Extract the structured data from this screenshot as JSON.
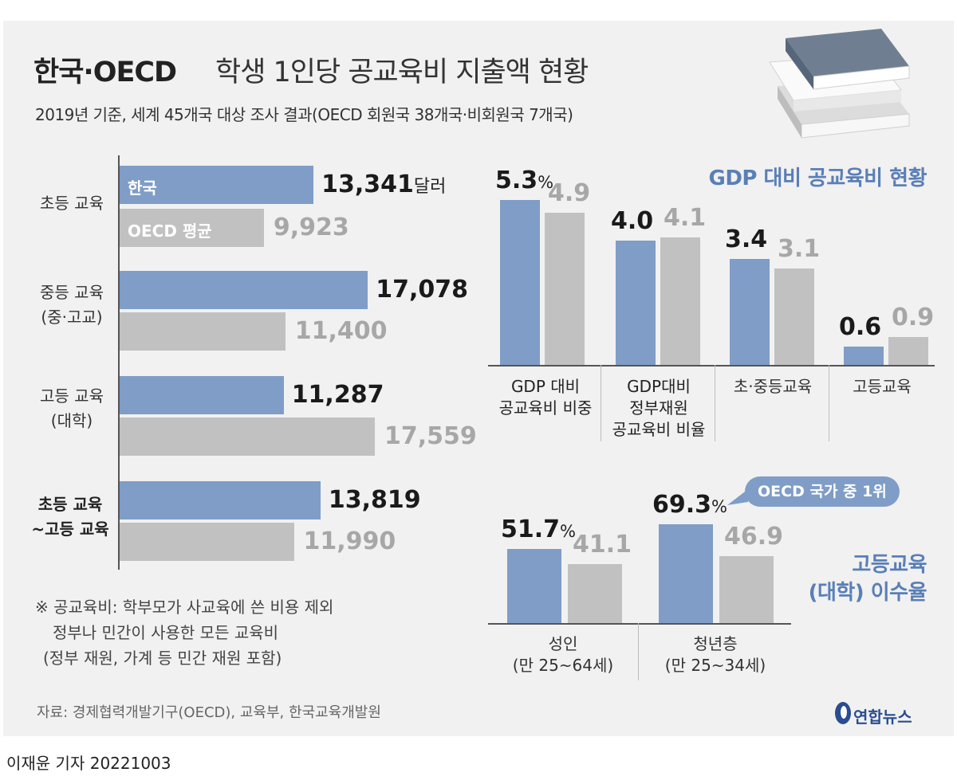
{
  "title": {
    "bold": "한국·OECD",
    "rest": "학생 1인당 공교육비 지출액 현황"
  },
  "subtitle": "2019년 기준, 세계 45개국 대상 조사 결과(OECD 회원국 38개국·비회원국 7개국)",
  "colors": {
    "korea": "#7f9dc6",
    "oecd": "#c1c1c1",
    "accent": "#5a7fb6"
  },
  "icons": {
    "books": "books-illustration",
    "logo": "yonhap-logo"
  },
  "spending_chart": {
    "legend": {
      "korea": "한국",
      "oecd": "OECD 평균"
    },
    "unit": "달러",
    "groups": [
      {
        "label_lines": [
          "초등 교육"
        ],
        "korea": 13341,
        "korea_text": "13,341",
        "oecd": 9923,
        "oecd_text": "9,923"
      },
      {
        "label_lines": [
          "중등 교육",
          "(중·고교)"
        ],
        "korea": 17078,
        "korea_text": "17,078",
        "oecd": 11400,
        "oecd_text": "11,400"
      },
      {
        "label_lines": [
          "고등 교육",
          "(대학)"
        ],
        "korea": 11287,
        "korea_text": "11,287",
        "oecd": 17559,
        "oecd_text": "17,559"
      },
      {
        "label_lines": [
          "초등 교육",
          "~고등 교육"
        ],
        "korea": 13819,
        "korea_text": "13,819",
        "oecd": 11990,
        "oecd_text": "11,990"
      }
    ]
  },
  "gdp_chart": {
    "title": "GDP 대비 공교육비 현황",
    "unit": "%",
    "groups": [
      {
        "label_lines": [
          "GDP 대비",
          "공교육비 비중"
        ],
        "korea": 5.3,
        "korea_text": "5.3",
        "oecd": 4.9,
        "oecd_text": "4.9"
      },
      {
        "label_lines": [
          "GDP대비",
          "정부재원",
          "공교육비 비율"
        ],
        "korea": 4.0,
        "korea_text": "4.0",
        "oecd": 4.1,
        "oecd_text": "4.1"
      },
      {
        "label_lines": [
          "초·중등교육"
        ],
        "korea": 3.4,
        "korea_text": "3.4",
        "oecd": 3.1,
        "oecd_text": "3.1"
      },
      {
        "label_lines": [
          "고등교육"
        ],
        "korea": 0.6,
        "korea_text": "0.6",
        "oecd": 0.9,
        "oecd_text": "0.9"
      }
    ]
  },
  "completion_chart": {
    "title_lines": [
      "고등교육",
      "(대학) 이수율"
    ],
    "unit": "%",
    "callout": "OECD 국가 중 1위",
    "groups": [
      {
        "label_lines": [
          "성인",
          "(만 25~64세)"
        ],
        "korea": 51.7,
        "korea_text": "51.7",
        "oecd": 41.1,
        "oecd_text": "41.1"
      },
      {
        "label_lines": [
          "청년층",
          "(만 25~34세)"
        ],
        "korea": 69.3,
        "korea_text": "69.3",
        "oecd": 46.9,
        "oecd_text": "46.9"
      }
    ]
  },
  "chart_data": [
    {
      "type": "bar",
      "orientation": "horizontal",
      "title": "한국·OECD 학생 1인당 공교육비 지출액 현황",
      "categories": [
        "초등 교육",
        "중등 교육 (중·고교)",
        "고등 교육 (대학)",
        "초등 교육 ~고등 교육"
      ],
      "series": [
        {
          "name": "한국",
          "values": [
            13341,
            17078,
            11287,
            13819
          ]
        },
        {
          "name": "OECD 평균",
          "values": [
            9923,
            11400,
            17559,
            11990
          ]
        }
      ],
      "unit": "달러",
      "xlim": [
        0,
        17559
      ]
    },
    {
      "type": "bar",
      "title": "GDP 대비 공교육비 현황",
      "categories": [
        "GDP 대비 공교육비 비중",
        "GDP대비 정부재원 공교육비 비율",
        "초·중등교육",
        "고등교육"
      ],
      "series": [
        {
          "name": "한국",
          "values": [
            5.3,
            4.0,
            3.4,
            0.6
          ]
        },
        {
          "name": "OECD 평균",
          "values": [
            4.9,
            4.1,
            3.1,
            0.9
          ]
        }
      ],
      "unit": "%",
      "ylim": [
        0,
        5.3
      ]
    },
    {
      "type": "bar",
      "title": "고등교육 (대학) 이수율",
      "categories": [
        "성인 (만 25~64세)",
        "청년층 (만 25~34세)"
      ],
      "series": [
        {
          "name": "한국",
          "values": [
            51.7,
            69.3
          ]
        },
        {
          "name": "OECD 평균",
          "values": [
            41.1,
            46.9
          ]
        }
      ],
      "unit": "%",
      "ylim": [
        0,
        69.3
      ]
    }
  ],
  "note_lines": [
    "※ 공교육비: 학부모가 사교육에 쓴 비용 제외",
    "정부나 민간이 사용한 모든 교육비",
    "(정부 재원, 가계 등 민간 재원 포함)"
  ],
  "source": "자료: 경제협력개발기구(OECD), 교육부, 한국교육개발원",
  "logo_text": "연합뉴스",
  "reporter": "이재윤 기자  20221003"
}
